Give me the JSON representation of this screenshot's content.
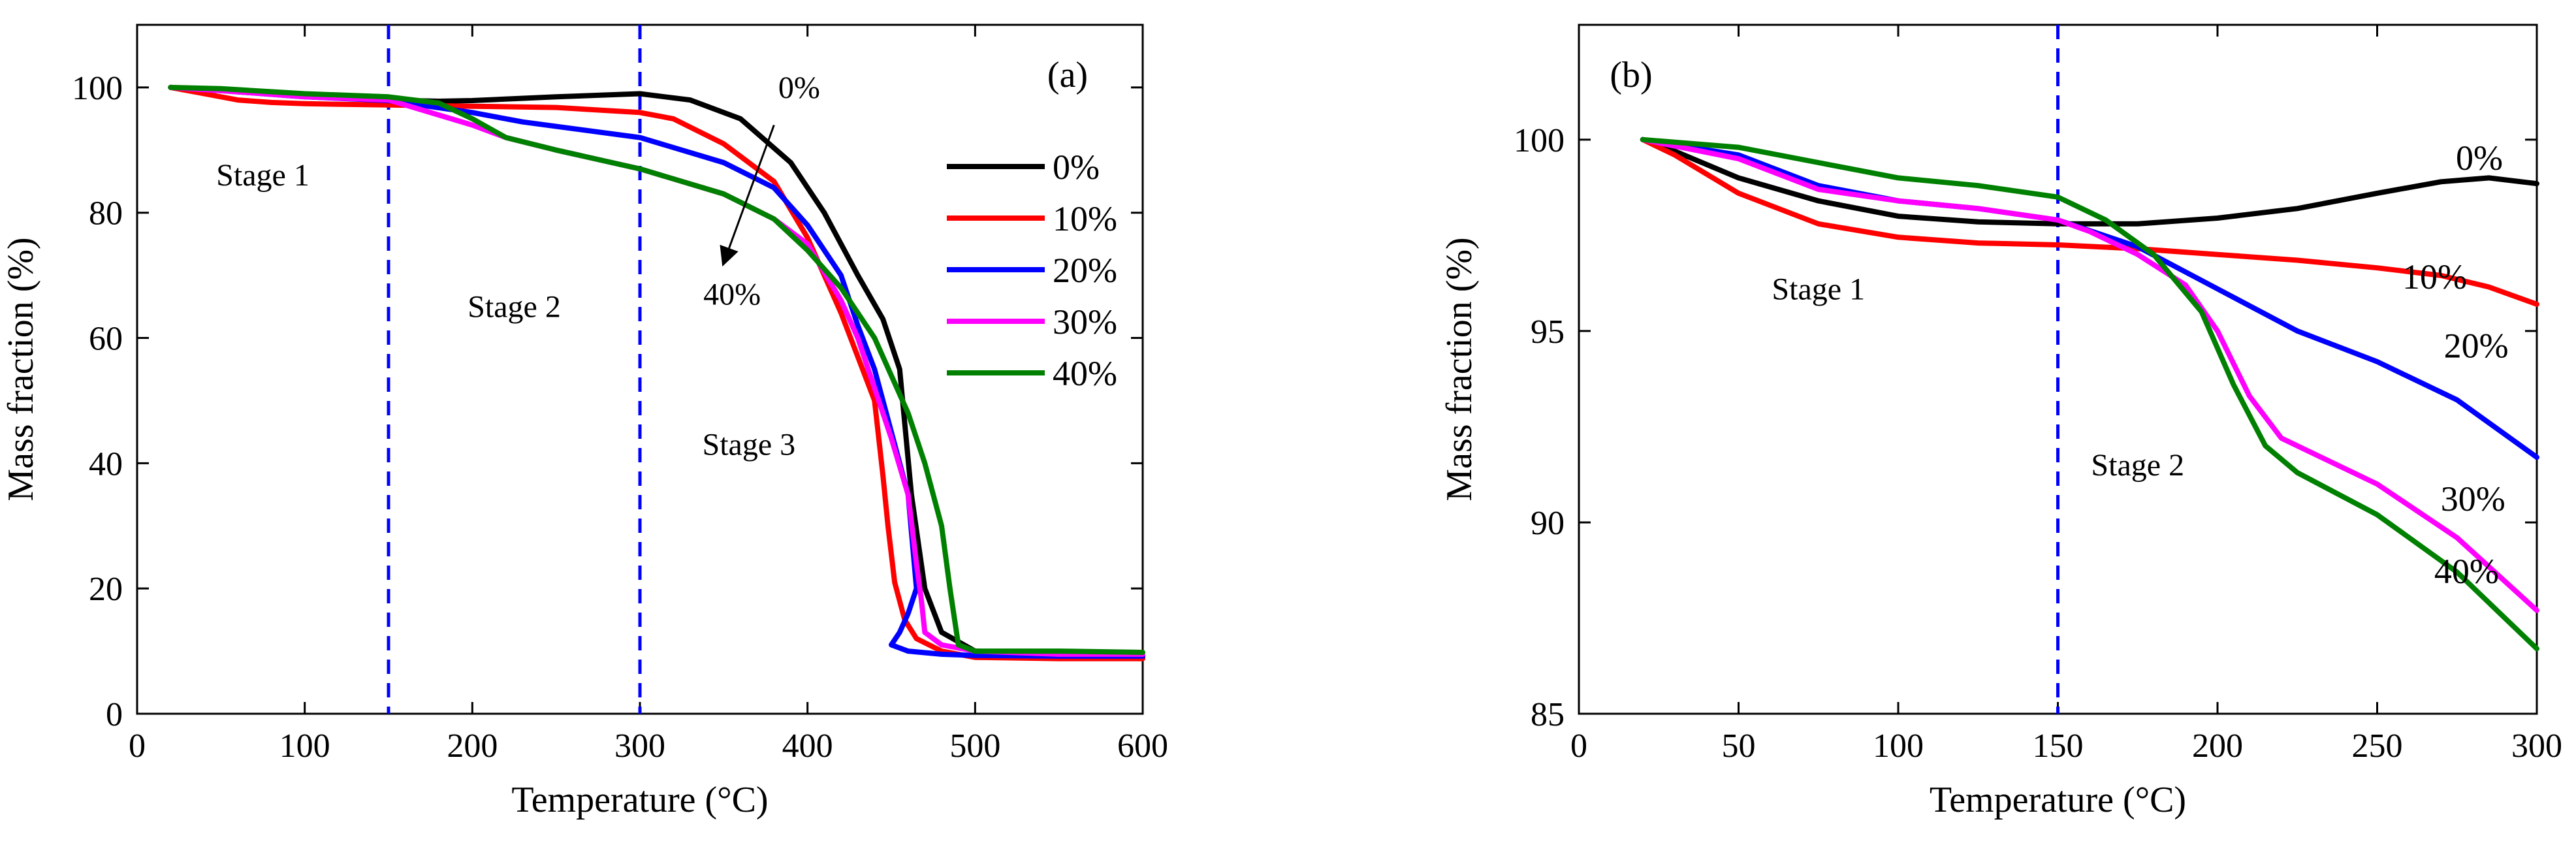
{
  "chart_data": [
    {
      "type": "line",
      "panel_label": "(a)",
      "xlabel": "Temperature (°C)",
      "ylabel": "Mass fraction (%)",
      "xlim": [
        0,
        600
      ],
      "ylim": [
        0,
        110
      ],
      "xticks": [
        0,
        100,
        200,
        300,
        400,
        500,
        600
      ],
      "yticks": [
        0,
        20,
        40,
        60,
        80,
        100
      ],
      "grid": false,
      "legend": "right",
      "dividers": [
        150,
        300
      ],
      "annotations": [
        {
          "text": "Stage 1",
          "x": 75,
          "y": 86
        },
        {
          "text": "Stage 2",
          "x": 225,
          "y": 65
        },
        {
          "text": "Stage 3",
          "x": 365,
          "y": 43
        },
        {
          "text": "0%",
          "x": 395,
          "y": 100
        },
        {
          "text": "40%",
          "x": 355,
          "y": 67
        }
      ],
      "arrow": {
        "from": [
          380,
          94
        ],
        "to": [
          350,
          72
        ]
      },
      "series": [
        {
          "name": "0%",
          "color": "#000000",
          "x": [
            20,
            50,
            100,
            150,
            180,
            200,
            250,
            300,
            330,
            360,
            390,
            410,
            430,
            445,
            455,
            462,
            470,
            480,
            500,
            550,
            600
          ],
          "y": [
            100,
            99.5,
            98.8,
            98,
            97.8,
            97.9,
            98.5,
            99,
            98,
            95,
            88,
            80,
            70,
            63,
            55,
            35,
            20,
            13,
            10,
            9.3,
            9
          ]
        },
        {
          "name": "10%",
          "color": "#ff0000",
          "x": [
            20,
            40,
            60,
            80,
            100,
            150,
            200,
            250,
            300,
            320,
            350,
            380,
            400,
            420,
            430,
            440,
            445,
            448,
            452,
            458,
            465,
            480,
            500,
            550,
            600
          ],
          "y": [
            100,
            99,
            98,
            97.6,
            97.4,
            97.2,
            97,
            96.8,
            96,
            95,
            91,
            85,
            76,
            64,
            57,
            50,
            38,
            30,
            21,
            15,
            12,
            10,
            9,
            8.8,
            8.8
          ]
        },
        {
          "name": "20%",
          "color": "#0000ff",
          "x": [
            20,
            50,
            100,
            150,
            200,
            230,
            300,
            350,
            380,
            400,
            420,
            430,
            440,
            450,
            460,
            465,
            460,
            455,
            450,
            460,
            480,
            500,
            550,
            600
          ],
          "y": [
            100,
            99.5,
            98.5,
            97.9,
            96,
            94.5,
            92,
            88,
            84,
            78,
            70,
            62,
            55,
            45,
            35,
            20,
            16,
            13,
            11,
            10,
            9.5,
            9.3,
            9.2,
            9.2
          ]
        },
        {
          "name": "30%",
          "color": "#ff00ff",
          "x": [
            20,
            50,
            100,
            150,
            200,
            220,
            250,
            300,
            350,
            380,
            400,
            420,
            430,
            440,
            450,
            460,
            465,
            468,
            470,
            480,
            500,
            550,
            600
          ],
          "y": [
            100,
            99.5,
            98.5,
            98,
            94,
            92,
            90,
            87,
            83,
            79,
            75,
            66,
            60,
            52,
            44,
            35,
            24,
            18,
            13,
            11,
            10,
            9.5,
            9.5
          ]
        },
        {
          "name": "40%",
          "color": "#008000",
          "x": [
            20,
            50,
            100,
            150,
            180,
            200,
            220,
            250,
            300,
            350,
            380,
            400,
            420,
            440,
            460,
            470,
            480,
            485,
            490,
            500,
            550,
            600
          ],
          "y": [
            100,
            99.8,
            99,
            98.5,
            97.5,
            95,
            92,
            90,
            87,
            83,
            79,
            74,
            68,
            60,
            48,
            40,
            30,
            20,
            11,
            10,
            10,
            9.8
          ]
        }
      ]
    },
    {
      "type": "line",
      "panel_label": "(b)",
      "xlabel": "Temperature (°C)",
      "ylabel": "Mass fraction (%)",
      "xlim": [
        0,
        300
      ],
      "ylim": [
        85,
        103
      ],
      "xticks": [
        0,
        50,
        100,
        150,
        200,
        250,
        300
      ],
      "yticks": [
        85,
        90,
        95,
        100
      ],
      "grid": false,
      "legend": "inline",
      "dividers": [
        150
      ],
      "annotations": [
        {
          "text": "Stage 1",
          "x": 75,
          "y": 96.1
        },
        {
          "text": "Stage 2",
          "x": 175,
          "y": 91.5
        }
      ],
      "series": [
        {
          "name": "0%",
          "color": "#000000",
          "label_pos": [
            282,
            99.5
          ],
          "x": [
            20,
            30,
            50,
            75,
            100,
            125,
            150,
            175,
            200,
            225,
            250,
            270,
            285,
            300
          ],
          "y": [
            100,
            99.7,
            99,
            98.4,
            98,
            97.85,
            97.8,
            97.8,
            97.95,
            98.2,
            98.6,
            98.9,
            99,
            98.85
          ]
        },
        {
          "name": "10%",
          "color": "#ff0000",
          "label_pos": [
            268,
            96.4
          ],
          "x": [
            20,
            30,
            50,
            75,
            100,
            125,
            150,
            175,
            200,
            225,
            250,
            270,
            285,
            300
          ],
          "y": [
            100,
            99.6,
            98.6,
            97.8,
            97.45,
            97.3,
            97.25,
            97.15,
            97,
            96.85,
            96.65,
            96.45,
            96.15,
            95.7
          ]
        },
        {
          "name": "20%",
          "color": "#0000ff",
          "label_pos": [
            281,
            94.6
          ],
          "x": [
            20,
            50,
            75,
            100,
            125,
            150,
            175,
            200,
            225,
            250,
            275,
            300
          ],
          "y": [
            100,
            99.6,
            98.8,
            98.4,
            98.2,
            97.9,
            97.2,
            96.1,
            95,
            94.2,
            93.2,
            91.7
          ]
        },
        {
          "name": "30%",
          "color": "#ff00ff",
          "label_pos": [
            280,
            90.6
          ],
          "x": [
            20,
            50,
            75,
            100,
            125,
            150,
            160,
            175,
            190,
            200,
            210,
            220,
            250,
            275,
            300
          ],
          "y": [
            100,
            99.5,
            98.7,
            98.4,
            98.2,
            97.9,
            97.6,
            97,
            96.2,
            95,
            93.3,
            92.2,
            91,
            89.6,
            87.7
          ]
        },
        {
          "name": "40%",
          "color": "#008000",
          "label_pos": [
            278,
            88.7
          ],
          "x": [
            20,
            50,
            75,
            100,
            125,
            150,
            165,
            180,
            195,
            205,
            215,
            225,
            250,
            275,
            300
          ],
          "y": [
            100,
            99.8,
            99.4,
            99,
            98.8,
            98.5,
            97.9,
            97,
            95.5,
            93.6,
            92,
            91.3,
            90.2,
            88.7,
            86.7
          ]
        }
      ]
    }
  ]
}
